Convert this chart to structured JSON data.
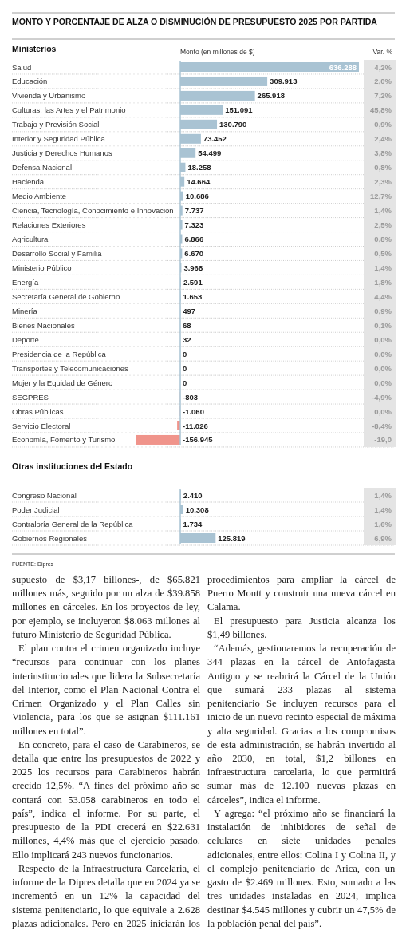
{
  "chart_data": [
    {
      "type": "bar",
      "orientation": "horizontal",
      "title": "MONTO Y PORCENTAJE DE ALZA O DISMINUCIÓN DE PRESUPUESTO 2025 POR PARTIDA",
      "subtitle": "Ministerios",
      "xlabel": "Monto (en millones de $)",
      "categories": [
        "Salud",
        "Educación",
        "Vivienda y Urbanismo",
        "Culturas, las Artes y el Patrimonio",
        "Trabajo y Previsión Social",
        "Interior y Seguridad Pública",
        "Justicia y Derechos Humanos",
        "Defensa Nacional",
        "Hacienda",
        "Medio Ambiente",
        "Ciencia, Tecnología, Conocimiento e Innovación",
        "Relaciones Exteriores",
        "Agricultura",
        "Desarrollo Social y Familia",
        "Ministerio Público",
        "Energía",
        "Secretaría General de Gobierno",
        "Minería",
        "Bienes Nacionales",
        "Deporte",
        "Presidencia de la República",
        "Transportes y Telecomunicaciones",
        "Mujer y la Equidad de Género",
        "SEGPRES",
        "Obras Públicas",
        "Servicio Electoral",
        "Economía, Fomento y Turismo"
      ],
      "values": [
        636288,
        309913,
        265918,
        151091,
        130790,
        73452,
        54499,
        18258,
        14664,
        10686,
        7737,
        7323,
        6866,
        6670,
        3968,
        2591,
        1653,
        497,
        68,
        32,
        0,
        0,
        0,
        -803,
        -1060,
        -11026,
        -156945
      ],
      "colors": [
        "#a9c3d3",
        "#a9c3d3",
        "#a9c3d3",
        "#a9c3d3",
        "#a9c3d3",
        "#a9c3d3",
        "#a9c3d3",
        "#a9c3d3",
        "#a9c3d3",
        "#a9c3d3",
        "#a9c3d3",
        "#a9c3d3",
        "#a9c3d3",
        "#a9c3d3",
        "#a9c3d3",
        "#a9c3d3",
        "#a9c3d3",
        "#a9c3d3",
        "#a9c3d3",
        "#a9c3d3",
        "#a9c3d3",
        "#a9c3d3",
        "#a9c3d3",
        "#f0948b",
        "#f0948b",
        "#f0948b",
        "#f0948b"
      ],
      "value_labels": [
        "636.288",
        "309.913",
        "265.918",
        "151.091",
        "130.790",
        "73.452",
        "54.499",
        "18.258",
        "14.664",
        "10.686",
        "7.737",
        "7.323",
        "6.866",
        "6.670",
        "3.968",
        "2.591",
        "1.653",
        "497",
        "68",
        "32",
        "0",
        "0",
        "0",
        "-803",
        "-1.060",
        "-11.026",
        "-156.945"
      ]
    },
    {
      "type": "other",
      "title": "Var. %",
      "values": [
        4.2,
        2.0,
        7.2,
        45.8,
        0.9,
        2.4,
        3.8,
        0.8,
        2.3,
        12.7,
        1.4,
        2.5,
        0.8,
        0.5,
        1.4,
        1.8,
        4.4,
        0.9,
        0.1,
        0.0,
        0.0,
        0.0,
        0.0,
        -4.9,
        0.0,
        -8.4,
        -19.0
      ],
      "value_labels": [
        "4,2%",
        "2,0%",
        "7,2%",
        "45,8%",
        "0,9%",
        "2,4%",
        "3,8%",
        "0,8%",
        "2,3%",
        "12,7%",
        "1,4%",
        "2,5%",
        "0,8%",
        "0,5%",
        "1,4%",
        "1,8%",
        "4,4%",
        "0,9%",
        "0,1%",
        "0,0%",
        "0,0%",
        "0,0%",
        "0,0%",
        "-4,9%",
        "0,0%",
        "-8,4%",
        "-19,0"
      ]
    },
    {
      "type": "bar",
      "orientation": "horizontal",
      "title": "Otras instituciones del Estado",
      "categories": [
        "Congreso Nacional",
        "Poder Judicial",
        "Contraloría General de la República",
        "Gobiernos Regionales"
      ],
      "values": [
        2410,
        10308,
        1734,
        125819
      ],
      "colors": [
        "#a9c3d3",
        "#a9c3d3",
        "#a9c3d3",
        "#a9c3d3"
      ],
      "value_labels": [
        "2.410",
        "10.308",
        "1.734",
        "125.819"
      ],
      "annotations": [
        "FUENTE: Dipres"
      ]
    },
    {
      "type": "other",
      "values": [
        1.4,
        1.4,
        1.6,
        6.9
      ],
      "value_labels": [
        "1,4%",
        "1,4%",
        "1,6%",
        "6,9%"
      ]
    },
    {
      "type": "other",
      "annotations": [
        "supuesto de $3,17 billones-, de $65.821 millones más, seguido por un alza de $39.858 millones en cárceles. En los proyectos de ley, por ejemplo, se incluyeron $8.063 millones al futuro Ministerio de Seguridad Pública.",
        "El plan contra el crimen organizado incluye “recursos para continuar con los planes interinstitucionales que lidera la Subsecretaría del Interior, como el Plan Nacional Contra el Crimen Organizado y el Plan Calles sin Violencia, para los que se asignan $111.161 millones en total”.",
        "En concreto, para el caso de Carabineros, se detalla que entre los presupuestos de 2022 y 2025 los recursos para Carabineros habrán crecido 12,5%. “A fines del próximo año se contará con 53.058 carabineros en todo el país”, indica el informe. Por su parte, el presupuesto de la PDI crecerá en $22.631 millones, 4,4% más que el ejercicio pasado. Ello implicará 243 nuevos funcionarios.",
        "Respecto de la Infraestructura Carcelaria, el informe de la Dipres detalla que en 2024 ya se incrementó en un 12% la capacidad del sistema penitenciario, lo que equivale a 2.628 plazas adicionales. Pero en 2025 iniciarán los procedimientos para ampliar la cárcel de Puerto Montt y construir una nueva cárcel en Calama.",
        "El presupuesto para Justicia alcanza los $1,49 billones.",
        "“Además, gestionaremos la recuperación de 344 plazas en la cárcel de Antofagasta Antiguo y se reabrirá la Cárcel de la Unión que sumará 233 plazas al sistema penitenciario Se incluyen recursos para el inicio de un nuevo recinto especial de máxima y alta seguridad. Gracias a los compromisos de esta administración, se habrán invertido al año 2030, en total, $1,2 billones en infraestructura carcelaria, lo que permitirá sumar más de 12.100 nuevas plazas en cárceles”, indica el informe.",
        "Y agrega: “el próximo año se financiará la instalación de inhibidores de señal de celulares en siete unidades penales adicionales, entre ellos: Colina I y Colina II, y el complejo penitenciario de Arica, con un gasto de $2.469 millones. Esto, sumado a las tres unidades instaladas en 2024, implica destinar $4.545 millones y cubrir un 47,5% de la población penal del país”."
      ]
    }
  ]
}
